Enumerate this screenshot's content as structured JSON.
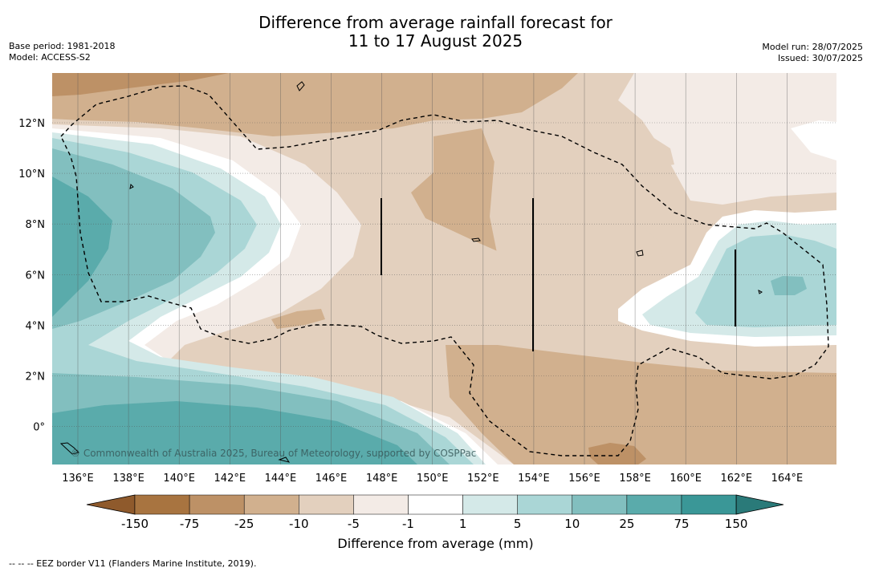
{
  "title": {
    "line1": "Difference from average rainfall forecast for",
    "line2": "11 to 17 August 2025"
  },
  "meta": {
    "base_period": "Base period: 1981-2018",
    "model": "Model: ACCESS-S2",
    "model_run": "Model run: 28/07/2025",
    "issued": "Issued: 30/07/2025"
  },
  "map": {
    "lon_labels": [
      "136°E",
      "138°E",
      "140°E",
      "142°E",
      "144°E",
      "146°E",
      "148°E",
      "150°E",
      "152°E",
      "154°E",
      "156°E",
      "158°E",
      "160°E",
      "162°E",
      "164°E"
    ],
    "lat_labels": [
      "12°N",
      "10°N",
      "8°N",
      "6°N",
      "4°N",
      "2°N",
      "0°"
    ],
    "copyright": "© Commonwealth of Australia 2025, Bureau of Meteorology, supported by COSPPac"
  },
  "colorbar": {
    "colors": [
      "#a87440",
      "#bd9166",
      "#d1b08e",
      "#e3d0be",
      "#f3ebe6",
      "#ffffff",
      "#d4e9e8",
      "#aad6d6",
      "#82bfbf",
      "#5aabab",
      "#3a9797"
    ],
    "under_color": "#8f5a2c",
    "over_color": "#2a7a79",
    "labels": [
      "-150",
      "-75",
      "-25",
      "-10",
      "-5",
      "-1",
      "1",
      "5",
      "10",
      "25",
      "75",
      "150"
    ],
    "title": "Difference from average (mm)"
  },
  "footer": "--  --  -- EEZ border V11 (Flanders Marine Institute, 2019)."
}
